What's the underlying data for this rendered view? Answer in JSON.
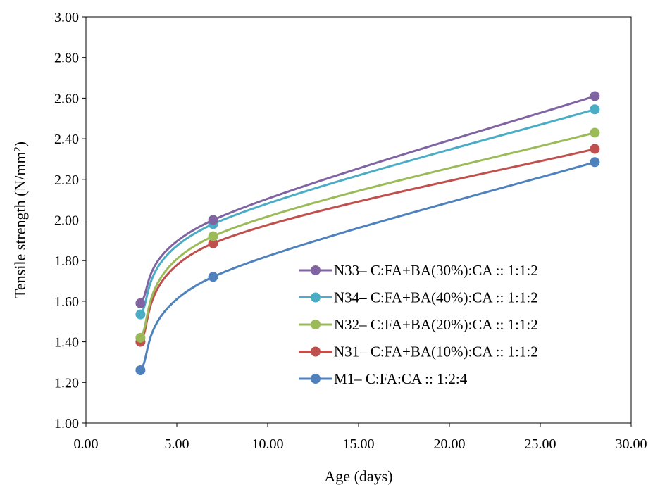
{
  "chart_data": {
    "type": "line",
    "title": "",
    "xlabel": "Age (days)",
    "ylabel": "Tensile strength (N/mm²)",
    "ylabel_parts": {
      "main": "Tensile strength (N/mm",
      "sup": "2",
      "tail": ")"
    },
    "xlim": [
      0,
      30
    ],
    "ylim": [
      1.0,
      3.0
    ],
    "x_ticks": [
      "0.00",
      "5.00",
      "10.00",
      "15.00",
      "20.00",
      "25.00",
      "30.00"
    ],
    "y_ticks": [
      "1.00",
      "1.20",
      "1.40",
      "1.60",
      "1.80",
      "2.00",
      "2.20",
      "2.40",
      "2.60",
      "2.80",
      "3.00"
    ],
    "grid": false,
    "smooth": true,
    "legend_position": "center-right",
    "x": [
      3,
      7,
      28
    ],
    "series": [
      {
        "name": "N33– C:FA+BA(30%):CA :: 1:1:2",
        "color": "#8064A2",
        "values": [
          1.59,
          2.0,
          2.61
        ]
      },
      {
        "name": "N34– C:FA+BA(40%):CA :: 1:1:2",
        "color": "#4BACC6",
        "values": [
          1.535,
          1.98,
          2.545
        ]
      },
      {
        "name": "N32– C:FA+BA(20%):CA :: 1:1:2",
        "color": "#9BBB59",
        "values": [
          1.42,
          1.92,
          2.43
        ]
      },
      {
        "name": "N31– C:FA+BA(10%):CA :: 1:1:2",
        "color": "#C0504D",
        "values": [
          1.4,
          1.885,
          2.35
        ]
      },
      {
        "name": "M1– C:FA:CA :: 1:2:4",
        "color": "#4F81BD",
        "values": [
          1.26,
          1.72,
          2.285
        ]
      }
    ]
  }
}
